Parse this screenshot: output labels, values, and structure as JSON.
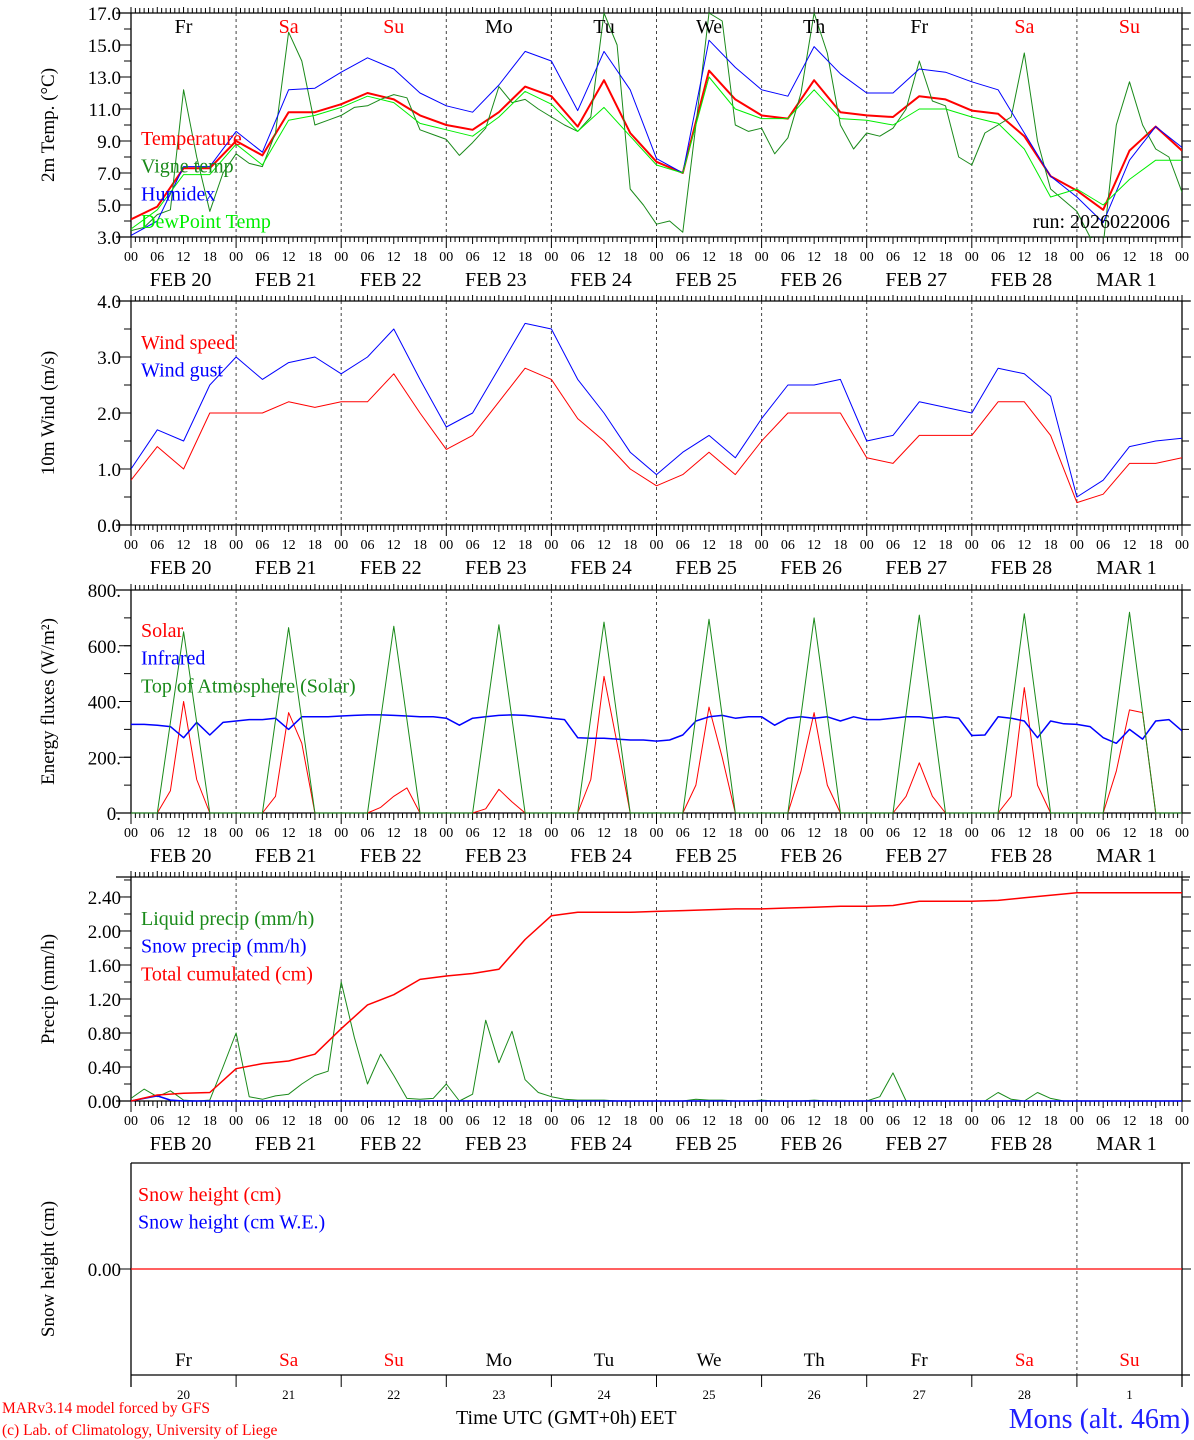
{
  "chart_data": [
    {
      "type": "line",
      "ylabel": "2m Temp. (°C)",
      "ylim": [
        3,
        17
      ],
      "minor_step": 1,
      "yticks": [
        {
          "v": 3,
          "label": "3.0"
        },
        {
          "v": 5,
          "label": "5.0"
        },
        {
          "v": 7,
          "label": "7.0"
        },
        {
          "v": 9,
          "label": "9.0"
        },
        {
          "v": 11,
          "label": "11.0"
        },
        {
          "v": 13,
          "label": "13.0"
        },
        {
          "v": 15,
          "label": "15.0"
        },
        {
          "v": 17,
          "label": "17.0"
        }
      ],
      "annotation": "run: 2026022006",
      "series": [
        {
          "name": "Temperature",
          "color": "#ff0000",
          "width": 2,
          "step_hours": 6,
          "values": [
            4.1,
            4.9,
            7.3,
            7.3,
            9.0,
            8.1,
            10.8,
            10.8,
            11.3,
            12.0,
            11.6,
            10.6,
            10.0,
            9.7,
            10.8,
            12.4,
            11.8,
            9.9,
            12.8,
            9.5,
            7.7,
            7.0,
            13.4,
            11.6,
            10.6,
            10.4,
            12.8,
            10.8,
            10.6,
            10.5,
            11.8,
            11.6,
            10.9,
            10.7,
            9.3,
            6.8,
            5.9,
            4.7,
            8.4,
            9.9,
            8.4
          ]
        },
        {
          "name": "Vigne temp",
          "color": "#1a8a1a",
          "width": 1,
          "step_hours": 3,
          "values": [
            3.4,
            3.6,
            4.4,
            4.7,
            12.2,
            8.0,
            4.6,
            7.0,
            8.2,
            7.6,
            7.4,
            9.5,
            15.8,
            14.0,
            10.0,
            10.3,
            10.6,
            11.1,
            11.2,
            11.6,
            11.9,
            11.7,
            9.7,
            9.4,
            9.1,
            8.1,
            8.9,
            9.8,
            12.4,
            11.4,
            11.6,
            11.0,
            10.5,
            10.0,
            9.6,
            10.5,
            17.0,
            15.0,
            6.0,
            5.0,
            3.8,
            4.0,
            3.3,
            10.0,
            17.0,
            16.5,
            10.0,
            9.6,
            9.8,
            8.2,
            9.2,
            12.0,
            17.0,
            14.5,
            10.0,
            8.5,
            9.5,
            9.3,
            9.8,
            11.0,
            14.0,
            11.5,
            11.2,
            8.0,
            7.5,
            9.5,
            10.0,
            10.5,
            14.5,
            9.0,
            6.0,
            5.3,
            4.6,
            3.0,
            2.5,
            10.0,
            12.7,
            10.0,
            8.5,
            8.0,
            5.8
          ]
        },
        {
          "name": "Humidex",
          "color": "#0000ff",
          "width": 1,
          "step_hours": 6,
          "values": [
            3.1,
            4.0,
            7.4,
            7.4,
            9.6,
            8.3,
            12.2,
            12.3,
            13.3,
            14.2,
            13.5,
            12.0,
            11.2,
            10.8,
            12.5,
            14.6,
            14.0,
            10.9,
            14.6,
            12.2,
            7.9,
            7.0,
            15.3,
            13.6,
            12.2,
            11.8,
            14.9,
            13.2,
            12.0,
            12.0,
            13.5,
            13.3,
            12.7,
            12.2,
            9.5,
            6.8,
            5.5,
            3.9,
            7.8,
            9.9,
            8.6
          ]
        },
        {
          "name": "DewPoint Temp",
          "color": "#00ee00",
          "width": 1,
          "step_hours": 6,
          "values": [
            3.5,
            4.7,
            6.9,
            6.9,
            8.8,
            7.5,
            10.3,
            10.6,
            11.1,
            11.8,
            11.4,
            10.1,
            9.7,
            9.3,
            10.5,
            12.1,
            11.3,
            9.6,
            11.1,
            9.3,
            7.5,
            7.0,
            13.0,
            11.0,
            10.4,
            10.4,
            12.2,
            10.4,
            10.3,
            10.0,
            11.0,
            11.0,
            10.5,
            10.1,
            8.5,
            5.5,
            6.0,
            5.0,
            6.6,
            7.8,
            7.8
          ]
        }
      ]
    },
    {
      "type": "line",
      "ylabel": "10m Wind (m/s)",
      "ylim": [
        0,
        4
      ],
      "minor_step": 0.5,
      "yticks": [
        {
          "v": 0,
          "label": "0.0"
        },
        {
          "v": 1,
          "label": "1.0"
        },
        {
          "v": 2,
          "label": "2.0"
        },
        {
          "v": 3,
          "label": "3.0"
        },
        {
          "v": 4,
          "label": "4.0"
        }
      ],
      "series": [
        {
          "name": "Wind speed",
          "color": "#ff0000",
          "width": 1,
          "step_hours": 6,
          "values": [
            0.8,
            1.4,
            1.0,
            2.0,
            2.0,
            2.0,
            2.2,
            2.1,
            2.2,
            2.2,
            2.7,
            2.0,
            1.35,
            1.6,
            2.2,
            2.8,
            2.6,
            1.9,
            1.5,
            1.0,
            0.7,
            0.9,
            1.3,
            0.9,
            1.5,
            2.0,
            2.0,
            2.0,
            1.2,
            1.1,
            1.6,
            1.6,
            1.6,
            2.2,
            2.2,
            1.6,
            0.4,
            0.55,
            1.1,
            1.1,
            1.2
          ]
        },
        {
          "name": "Wind gust",
          "color": "#0000ff",
          "width": 1,
          "step_hours": 6,
          "values": [
            1.0,
            1.7,
            1.5,
            2.5,
            3.0,
            2.6,
            2.9,
            3.0,
            2.7,
            3.0,
            3.5,
            2.6,
            1.75,
            2.0,
            2.8,
            3.6,
            3.5,
            2.6,
            2.0,
            1.3,
            0.9,
            1.3,
            1.6,
            1.2,
            1.9,
            2.5,
            2.5,
            2.6,
            1.5,
            1.6,
            2.2,
            2.1,
            2.0,
            2.8,
            2.7,
            2.3,
            0.5,
            0.8,
            1.4,
            1.5,
            1.55
          ]
        }
      ]
    },
    {
      "type": "line",
      "ylabel": "Energy fluxes (W/m²)",
      "ylim": [
        0,
        800
      ],
      "minor_step": 100,
      "yticks": [
        {
          "v": 0,
          "label": "0."
        },
        {
          "v": 200,
          "label": "200."
        },
        {
          "v": 400,
          "label": "400."
        },
        {
          "v": 600,
          "label": "600."
        },
        {
          "v": 800,
          "label": "800."
        }
      ],
      "series": [
        {
          "name": "Solar",
          "color": "#ff0000",
          "width": 1,
          "step_hours": 3,
          "values": [
            0,
            0,
            0,
            80,
            400,
            120,
            0,
            0,
            0,
            0,
            0,
            60,
            360,
            250,
            0,
            0,
            0,
            0,
            0,
            20,
            60,
            90,
            0,
            0,
            0,
            0,
            0,
            15,
            85,
            40,
            0,
            0,
            0,
            0,
            0,
            120,
            490,
            250,
            0,
            0,
            0,
            0,
            0,
            100,
            380,
            200,
            0,
            0,
            0,
            0,
            0,
            150,
            360,
            100,
            0,
            0,
            0,
            0,
            0,
            60,
            180,
            60,
            0,
            0,
            0,
            0,
            0,
            60,
            450,
            100,
            0,
            0,
            0,
            0,
            0,
            150,
            370,
            360,
            0,
            0,
            0
          ]
        },
        {
          "name": "Infrared",
          "color": "#0000ff",
          "width": 1.5,
          "step_hours": 3,
          "values": [
            318,
            318,
            315,
            310,
            270,
            325,
            280,
            325,
            330,
            335,
            335,
            340,
            300,
            345,
            345,
            345,
            348,
            350,
            352,
            352,
            350,
            348,
            345,
            345,
            340,
            315,
            340,
            345,
            350,
            352,
            350,
            345,
            340,
            335,
            270,
            268,
            268,
            265,
            262,
            262,
            258,
            262,
            280,
            330,
            345,
            350,
            340,
            345,
            345,
            315,
            340,
            345,
            340,
            345,
            330,
            345,
            335,
            335,
            340,
            345,
            345,
            340,
            345,
            340,
            278,
            280,
            345,
            340,
            330,
            270,
            330,
            320,
            318,
            310,
            270,
            250,
            300,
            265,
            330,
            335,
            295
          ]
        },
        {
          "name": "Top of Atmosphere (Solar)",
          "color": "#1a8a1a",
          "width": 1,
          "step_hours": 3,
          "values": [
            0,
            0,
            0,
            325,
            650,
            325,
            0,
            0,
            0,
            0,
            0,
            333,
            665,
            333,
            0,
            0,
            0,
            0,
            0,
            335,
            670,
            335,
            0,
            0,
            0,
            0,
            0,
            338,
            675,
            338,
            0,
            0,
            0,
            0,
            0,
            343,
            685,
            343,
            0,
            0,
            0,
            0,
            0,
            348,
            695,
            348,
            0,
            0,
            0,
            0,
            0,
            350,
            700,
            350,
            0,
            0,
            0,
            0,
            0,
            355,
            710,
            355,
            0,
            0,
            0,
            0,
            0,
            358,
            715,
            358,
            0,
            0,
            0,
            0,
            0,
            360,
            720,
            360,
            0,
            0,
            0
          ]
        }
      ]
    },
    {
      "type": "line",
      "ylabel": "Precip (mm/h)",
      "ylim": [
        0,
        2.635
      ],
      "minor_step": 0.2,
      "yticks": [
        {
          "v": 0,
          "label": "0.00"
        },
        {
          "v": 0.4,
          "label": "0.40"
        },
        {
          "v": 0.8,
          "label": "0.80"
        },
        {
          "v": 1.2,
          "label": "1.20"
        },
        {
          "v": 1.6,
          "label": "1.60"
        },
        {
          "v": 2.0,
          "label": "2.00"
        },
        {
          "v": 2.4,
          "label": "2.40"
        }
      ],
      "series": [
        {
          "name": "Liquid precip (mm/h)",
          "color": "#1a8a1a",
          "width": 1,
          "step_hours": 3,
          "values": [
            0.03,
            0.14,
            0.05,
            0.12,
            0.01,
            0,
            0.01,
            0.4,
            0.8,
            0.05,
            0.02,
            0.06,
            0.08,
            0.2,
            0.3,
            0.35,
            1.4,
            0.75,
            0.2,
            0.55,
            0.3,
            0.03,
            0.02,
            0.03,
            0.2,
            0,
            0.08,
            0.95,
            0.45,
            0.82,
            0.25,
            0.1,
            0.05,
            0.02,
            0.01,
            0.01,
            0.01,
            0,
            0,
            0,
            0,
            0,
            0,
            0.02,
            0.01,
            0.01,
            0,
            0,
            0.01,
            0,
            0,
            0,
            0.01,
            0,
            0,
            0,
            0,
            0.05,
            0.33,
            0,
            0,
            0,
            0,
            0,
            0,
            0,
            0.1,
            0.02,
            0,
            0.1,
            0.03,
            0,
            0,
            0,
            0,
            0,
            0,
            0,
            0,
            0,
            0
          ]
        },
        {
          "name": "Snow precip (mm/h)",
          "color": "#0000ff",
          "width": 1.5,
          "step_hours": 3,
          "values": [
            0,
            0.03,
            0.06,
            0.01,
            0,
            0,
            0,
            0,
            0,
            0,
            0,
            0,
            0,
            0,
            0,
            0,
            0,
            0,
            0,
            0,
            0,
            0,
            0,
            0,
            0,
            0,
            0,
            0,
            0,
            0,
            0,
            0,
            0,
            0,
            0,
            0,
            0,
            0,
            0,
            0,
            0,
            0,
            0,
            0,
            0,
            0,
            0,
            0,
            0,
            0,
            0,
            0,
            0,
            0,
            0,
            0,
            0,
            0,
            0,
            0,
            0,
            0,
            0,
            0,
            0,
            0,
            0,
            0,
            0,
            0,
            0,
            0,
            0,
            0,
            0,
            0,
            0,
            0,
            0,
            0,
            0
          ]
        },
        {
          "name": "Total cumulated (cm)",
          "color": "#ff0000",
          "width": 1.5,
          "step_hours": 6,
          "values": [
            0,
            0.07,
            0.09,
            0.1,
            0.38,
            0.44,
            0.47,
            0.55,
            0.85,
            1.13,
            1.25,
            1.43,
            1.47,
            1.5,
            1.55,
            1.9,
            2.18,
            2.22,
            2.22,
            2.22,
            2.23,
            2.24,
            2.25,
            2.26,
            2.26,
            2.27,
            2.28,
            2.29,
            2.29,
            2.3,
            2.35,
            2.35,
            2.35,
            2.36,
            2.39,
            2.42,
            2.45,
            2.45,
            2.45,
            2.45,
            2.45
          ]
        }
      ]
    },
    {
      "type": "line",
      "ylabel": "Snow height (cm)",
      "ylim": [
        -1,
        1
      ],
      "minor_step": 0,
      "yticks": [
        {
          "v": 0,
          "label": "0.00"
        }
      ],
      "series": [
        {
          "name": "Snow height (cm)",
          "color": "#ff0000",
          "width": 1.3,
          "step_hours": 240,
          "values": [
            0,
            0
          ]
        },
        {
          "name": "Snow height (cm W.E.)",
          "color": "#0000ff",
          "width": 0,
          "step_hours": 240,
          "values": [
            0,
            0
          ]
        }
      ]
    }
  ],
  "x_axis": {
    "hour_labels": [
      "00",
      "06",
      "12",
      "18"
    ],
    "end_label": "00",
    "date_labels": [
      "FEB 20",
      "FEB 21",
      "FEB 22",
      "FEB 23",
      "FEB 24",
      "FEB 25",
      "FEB 26",
      "FEB 27",
      "FEB 28",
      "MAR  1"
    ],
    "day_numbers": [
      "20",
      "21",
      "22",
      "23",
      "24",
      "25",
      "26",
      "27",
      "28",
      "1"
    ],
    "xlabel": "Time UTC (GMT+0h)",
    "xlabel_overprint": "EET"
  },
  "day_labels": [
    {
      "text": "Fr",
      "color": "#000000"
    },
    {
      "text": "Sa",
      "color": "#ff0000"
    },
    {
      "text": "Su",
      "color": "#ff0000"
    },
    {
      "text": "Mo",
      "color": "#000000"
    },
    {
      "text": "Tu",
      "color": "#000000"
    },
    {
      "text": "We",
      "color": "#000000"
    },
    {
      "text": "Th",
      "color": "#000000"
    },
    {
      "text": "Fr",
      "color": "#000000"
    },
    {
      "text": "Sa",
      "color": "#ff0000"
    },
    {
      "text": "Su",
      "color": "#ff0000"
    }
  ],
  "footer": {
    "model": "MARv3.14 model forced by GFS",
    "credit": "(c) Lab. of Climatology, University of Liege",
    "station": "Mons (alt. 46m)"
  }
}
